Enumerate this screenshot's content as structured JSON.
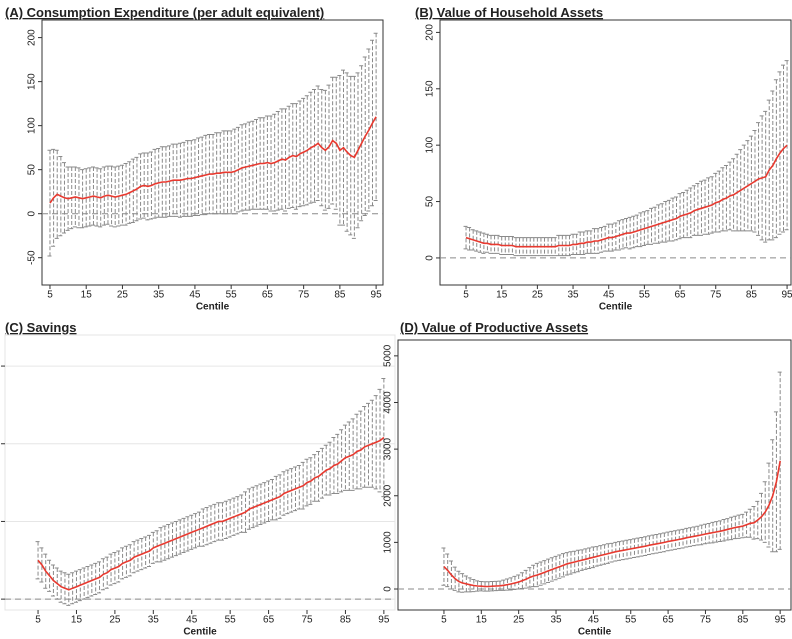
{
  "chart_data": [
    {
      "type": "line",
      "title": "(A) Consumption Expenditure (per adult equivalent)",
      "x_label": "Centile",
      "x": [
        5,
        6,
        7,
        8,
        9,
        10,
        11,
        12,
        13,
        14,
        15,
        16,
        17,
        18,
        19,
        20,
        21,
        22,
        23,
        24,
        25,
        26,
        27,
        28,
        29,
        30,
        31,
        32,
        33,
        34,
        35,
        36,
        37,
        38,
        39,
        40,
        41,
        42,
        43,
        44,
        45,
        46,
        47,
        48,
        49,
        50,
        51,
        52,
        53,
        54,
        55,
        56,
        57,
        58,
        59,
        60,
        61,
        62,
        63,
        64,
        65,
        66,
        67,
        68,
        69,
        70,
        71,
        72,
        73,
        74,
        75,
        76,
        77,
        78,
        79,
        80,
        81,
        82,
        83,
        84,
        85,
        86,
        87,
        88,
        89,
        90,
        91,
        92,
        93,
        94,
        95
      ],
      "values": [
        12,
        18,
        22,
        20,
        18,
        17,
        18,
        19,
        18,
        17,
        18,
        19,
        20,
        19,
        18,
        20,
        21,
        20,
        19,
        20,
        21,
        22,
        24,
        26,
        28,
        31,
        32,
        31,
        32,
        34,
        35,
        36,
        36,
        37,
        38,
        38,
        38,
        39,
        40,
        40,
        41,
        42,
        43,
        44,
        45,
        45,
        46,
        46,
        47,
        47,
        47,
        48,
        50,
        52,
        53,
        54,
        55,
        56,
        57,
        57,
        58,
        57,
        58,
        60,
        62,
        61,
        64,
        66,
        65,
        68,
        70,
        72,
        75,
        77,
        80,
        75,
        72,
        76,
        83,
        80,
        72,
        75,
        70,
        66,
        64,
        72,
        80,
        88,
        95,
        103,
        110
      ],
      "errors": [
        60,
        55,
        50,
        45,
        40,
        36,
        35,
        34,
        34,
        33,
        33,
        33,
        33,
        33,
        33,
        33,
        33,
        34,
        34,
        34,
        34,
        35,
        35,
        36,
        36,
        37,
        37,
        38,
        38,
        39,
        39,
        40,
        40,
        40,
        41,
        41,
        42,
        42,
        43,
        43,
        43,
        44,
        44,
        45,
        45,
        45,
        46,
        46,
        47,
        47,
        47,
        48,
        48,
        49,
        49,
        50,
        50,
        51,
        52,
        52,
        53,
        54,
        55,
        56,
        57,
        58,
        58,
        59,
        60,
        60,
        61,
        62,
        63,
        64,
        65,
        66,
        68,
        70,
        72,
        75,
        85,
        88,
        90,
        90,
        92,
        88,
        88,
        90,
        92,
        94,
        95
      ],
      "color": "#e8392f",
      "error_color": "#8a8a8a",
      "reference_line": 0,
      "grid": false,
      "xlim": [
        2.8,
        96.9
      ],
      "ylim": [
        -81,
        220
      ],
      "xticks": [
        5,
        15,
        25,
        35,
        45,
        55,
        65,
        75,
        85,
        95
      ],
      "yticks": [
        -50,
        0,
        50,
        100,
        150,
        200
      ]
    },
    {
      "type": "line",
      "title": "(B) Value of Household Assets",
      "x_label": "Centile",
      "x": [
        5,
        6,
        7,
        8,
        9,
        10,
        11,
        12,
        13,
        14,
        15,
        16,
        17,
        18,
        19,
        20,
        21,
        22,
        23,
        24,
        25,
        26,
        27,
        28,
        29,
        30,
        31,
        32,
        33,
        34,
        35,
        36,
        37,
        38,
        39,
        40,
        41,
        42,
        43,
        44,
        45,
        46,
        47,
        48,
        49,
        50,
        51,
        52,
        53,
        54,
        55,
        56,
        57,
        58,
        59,
        60,
        61,
        62,
        63,
        64,
        65,
        66,
        67,
        68,
        69,
        70,
        71,
        72,
        73,
        74,
        75,
        76,
        77,
        78,
        79,
        80,
        81,
        82,
        83,
        84,
        85,
        86,
        87,
        88,
        89,
        90,
        91,
        92,
        93,
        94,
        95
      ],
      "values": [
        18,
        17,
        16,
        15,
        14,
        13,
        13,
        12,
        12,
        12,
        11,
        11,
        11,
        11,
        10,
        10,
        10,
        10,
        10,
        10,
        10,
        10,
        10,
        10,
        10,
        10,
        11,
        11,
        11,
        11,
        12,
        12,
        13,
        13,
        14,
        14,
        15,
        15,
        16,
        17,
        18,
        18,
        19,
        20,
        21,
        22,
        22,
        23,
        24,
        25,
        26,
        27,
        28,
        29,
        30,
        31,
        32,
        33,
        34,
        35,
        37,
        38,
        39,
        40,
        42,
        43,
        44,
        45,
        46,
        47,
        49,
        50,
        52,
        53,
        55,
        56,
        58,
        60,
        62,
        64,
        66,
        68,
        70,
        71,
        72,
        78,
        82,
        88,
        93,
        97,
        100
      ],
      "errors": [
        10,
        10,
        9,
        9,
        9,
        9,
        8,
        8,
        8,
        8,
        8,
        8,
        8,
        8,
        8,
        8,
        8,
        8,
        8,
        8,
        8,
        8,
        8,
        8,
        8,
        8,
        9,
        9,
        9,
        9,
        9,
        9,
        10,
        10,
        10,
        10,
        11,
        11,
        11,
        11,
        12,
        12,
        12,
        13,
        13,
        13,
        14,
        14,
        14,
        15,
        15,
        15,
        16,
        16,
        17,
        17,
        18,
        18,
        19,
        19,
        20,
        20,
        21,
        22,
        22,
        23,
        24,
        24,
        25,
        25,
        26,
        27,
        28,
        29,
        30,
        32,
        34,
        36,
        38,
        40,
        42,
        45,
        50,
        55,
        58,
        62,
        66,
        70,
        72,
        74,
        75
      ],
      "color": "#e8392f",
      "error_color": "#8a8a8a",
      "reference_line": 0,
      "grid": false,
      "xlim": [
        -2.3,
        96.1
      ],
      "ylim": [
        -24,
        211
      ],
      "xticks": [
        5,
        15,
        25,
        35,
        45,
        55,
        65,
        75,
        85,
        95
      ],
      "yticks": [
        0,
        50,
        100,
        150,
        200
      ]
    },
    {
      "type": "line",
      "title": "(C) Savings",
      "x_label": "Centile",
      "x": [
        5,
        6,
        7,
        8,
        9,
        10,
        11,
        12,
        13,
        14,
        15,
        16,
        17,
        18,
        19,
        20,
        21,
        22,
        23,
        24,
        25,
        26,
        27,
        28,
        29,
        30,
        31,
        32,
        33,
        34,
        35,
        36,
        37,
        38,
        39,
        40,
        41,
        42,
        43,
        44,
        45,
        46,
        47,
        48,
        49,
        50,
        51,
        52,
        53,
        54,
        55,
        56,
        57,
        58,
        59,
        60,
        61,
        62,
        63,
        64,
        65,
        66,
        67,
        68,
        69,
        70,
        71,
        72,
        73,
        74,
        75,
        76,
        77,
        78,
        79,
        80,
        81,
        82,
        83,
        84,
        85,
        86,
        87,
        88,
        89,
        90,
        91,
        92,
        93,
        94,
        95
      ],
      "values": [
        25,
        22,
        18,
        15,
        12,
        10,
        8,
        7,
        6,
        7,
        8,
        9,
        10,
        11,
        12,
        13,
        14,
        16,
        17,
        19,
        20,
        21,
        23,
        24,
        25,
        27,
        28,
        29,
        30,
        31,
        33,
        34,
        35,
        36,
        37,
        38,
        39,
        40,
        41,
        42,
        43,
        44,
        45,
        46,
        47,
        48,
        49,
        50,
        50,
        51,
        52,
        53,
        54,
        55,
        56,
        58,
        59,
        60,
        61,
        62,
        63,
        64,
        65,
        66,
        68,
        69,
        70,
        71,
        72,
        73,
        75,
        76,
        78,
        79,
        81,
        83,
        84,
        86,
        87,
        89,
        91,
        92,
        93,
        95,
        96,
        98,
        99,
        100,
        101,
        102,
        104
      ],
      "errors": [
        12,
        11,
        11,
        10,
        10,
        10,
        10,
        10,
        10,
        10,
        10,
        10,
        10,
        10,
        10,
        10,
        10,
        10,
        10,
        10,
        10,
        10,
        10,
        10,
        10,
        10,
        10,
        10,
        10,
        10,
        10,
        10,
        11,
        11,
        11,
        11,
        11,
        11,
        11,
        11,
        11,
        11,
        11,
        12,
        12,
        12,
        12,
        12,
        12,
        12,
        12,
        12,
        12,
        12,
        13,
        13,
        13,
        13,
        13,
        13,
        13,
        13,
        14,
        14,
        14,
        14,
        14,
        14,
        14,
        15,
        15,
        15,
        15,
        16,
        16,
        16,
        17,
        18,
        19,
        20,
        21,
        22,
        23,
        24,
        25,
        26,
        27,
        28,
        30,
        33,
        38
      ],
      "color": "#e8392f",
      "error_color": "#8a8a8a",
      "reference_line": 0,
      "grid": true,
      "xlim": [
        -3.6,
        97.9
      ],
      "ylim": [
        -7,
        170
      ],
      "xticks": [
        5,
        15,
        25,
        35,
        45,
        55,
        65,
        75,
        85,
        95
      ],
      "yticks": [
        0,
        50,
        100,
        150
      ]
    },
    {
      "type": "line",
      "title": "(D) Value of Productive Assets",
      "x_label": "Centile",
      "x": [
        5,
        6,
        7,
        8,
        9,
        10,
        11,
        12,
        13,
        14,
        15,
        16,
        17,
        18,
        19,
        20,
        21,
        22,
        23,
        24,
        25,
        26,
        27,
        28,
        29,
        30,
        31,
        32,
        33,
        34,
        35,
        36,
        37,
        38,
        39,
        40,
        41,
        42,
        43,
        44,
        45,
        46,
        47,
        48,
        49,
        50,
        51,
        52,
        53,
        54,
        55,
        56,
        57,
        58,
        59,
        60,
        61,
        62,
        63,
        64,
        65,
        66,
        67,
        68,
        69,
        70,
        71,
        72,
        73,
        74,
        75,
        76,
        77,
        78,
        79,
        80,
        81,
        82,
        83,
        84,
        85,
        86,
        87,
        88,
        89,
        90,
        91,
        92,
        93,
        94,
        95
      ],
      "values": [
        480,
        400,
        300,
        220,
        160,
        130,
        110,
        90,
        75,
        65,
        60,
        55,
        55,
        60,
        65,
        70,
        80,
        95,
        110,
        130,
        150,
        180,
        210,
        250,
        280,
        300,
        330,
        360,
        390,
        420,
        450,
        480,
        510,
        540,
        560,
        580,
        600,
        620,
        640,
        660,
        680,
        700,
        720,
        740,
        760,
        780,
        800,
        815,
        830,
        845,
        860,
        875,
        890,
        905,
        920,
        940,
        955,
        970,
        985,
        1000,
        1020,
        1035,
        1050,
        1065,
        1080,
        1100,
        1115,
        1130,
        1145,
        1160,
        1180,
        1195,
        1210,
        1225,
        1240,
        1260,
        1280,
        1300,
        1320,
        1335,
        1350,
        1380,
        1410,
        1420,
        1480,
        1550,
        1650,
        1800,
        2000,
        2300,
        2750
      ],
      "errors": [
        400,
        350,
        300,
        250,
        220,
        200,
        170,
        150,
        130,
        110,
        100,
        100,
        100,
        100,
        100,
        100,
        110,
        120,
        130,
        140,
        150,
        170,
        190,
        210,
        230,
        250,
        250,
        250,
        250,
        250,
        250,
        250,
        250,
        240,
        240,
        230,
        230,
        220,
        220,
        220,
        220,
        210,
        210,
        210,
        210,
        200,
        200,
        200,
        200,
        200,
        200,
        200,
        200,
        200,
        200,
        200,
        200,
        200,
        200,
        200,
        200,
        200,
        200,
        200,
        200,
        200,
        200,
        200,
        200,
        210,
        210,
        210,
        220,
        220,
        220,
        230,
        230,
        240,
        240,
        250,
        250,
        270,
        300,
        350,
        400,
        500,
        650,
        900,
        1200,
        1500,
        1900
      ],
      "color": "#e8392f",
      "error_color": "#8a8a8a",
      "reference_line": 0,
      "grid": false,
      "xlim": [
        -7.3,
        97.9
      ],
      "ylim": [
        -450,
        5340
      ],
      "xticks": [
        5,
        15,
        25,
        35,
        45,
        55,
        65,
        75,
        85,
        95
      ],
      "yticks": [
        0,
        1000,
        2000,
        3000,
        4000,
        5000
      ]
    }
  ]
}
